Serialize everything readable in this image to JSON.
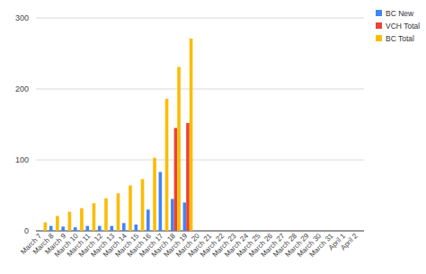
{
  "chart_data": {
    "type": "bar",
    "categories": [
      "March 7",
      "March 8",
      "March 9",
      "March 10",
      "March 11",
      "March 12",
      "March 13",
      "March 14",
      "March 15",
      "March 16",
      "March 17",
      "March 18",
      "March 19",
      "March 20",
      "March 21",
      "March 22",
      "March 23",
      "March 24",
      "March 25",
      "March 26",
      "March 27",
      "March 28",
      "March 29",
      "March 30",
      "March 31",
      "April 1",
      "April 2"
    ],
    "series": [
      {
        "name": "BC New",
        "color": "#4285f4",
        "values": [
          null,
          7,
          6,
          5,
          7,
          7,
          7,
          11,
          9,
          30,
          83,
          45,
          40,
          null,
          null,
          null,
          null,
          null,
          null,
          null,
          null,
          null,
          null,
          null,
          null,
          null,
          null
        ]
      },
      {
        "name": "VCH Total",
        "color": "#ea4335",
        "values": [
          null,
          null,
          null,
          null,
          null,
          null,
          null,
          null,
          null,
          null,
          null,
          145,
          152,
          null,
          null,
          null,
          null,
          null,
          null,
          null,
          null,
          null,
          null,
          null,
          null,
          null,
          null
        ]
      },
      {
        "name": "BC Total",
        "color": "#fbbc04",
        "values": [
          12,
          21,
          27,
          32,
          39,
          46,
          53,
          64,
          73,
          103,
          186,
          231,
          271,
          null,
          null,
          null,
          null,
          null,
          null,
          null,
          null,
          null,
          null,
          null,
          null,
          null,
          null
        ]
      }
    ],
    "ylim": [
      0,
      300
    ],
    "yticks": [
      0,
      100,
      200,
      300
    ],
    "grid": true,
    "legend": "right"
  }
}
